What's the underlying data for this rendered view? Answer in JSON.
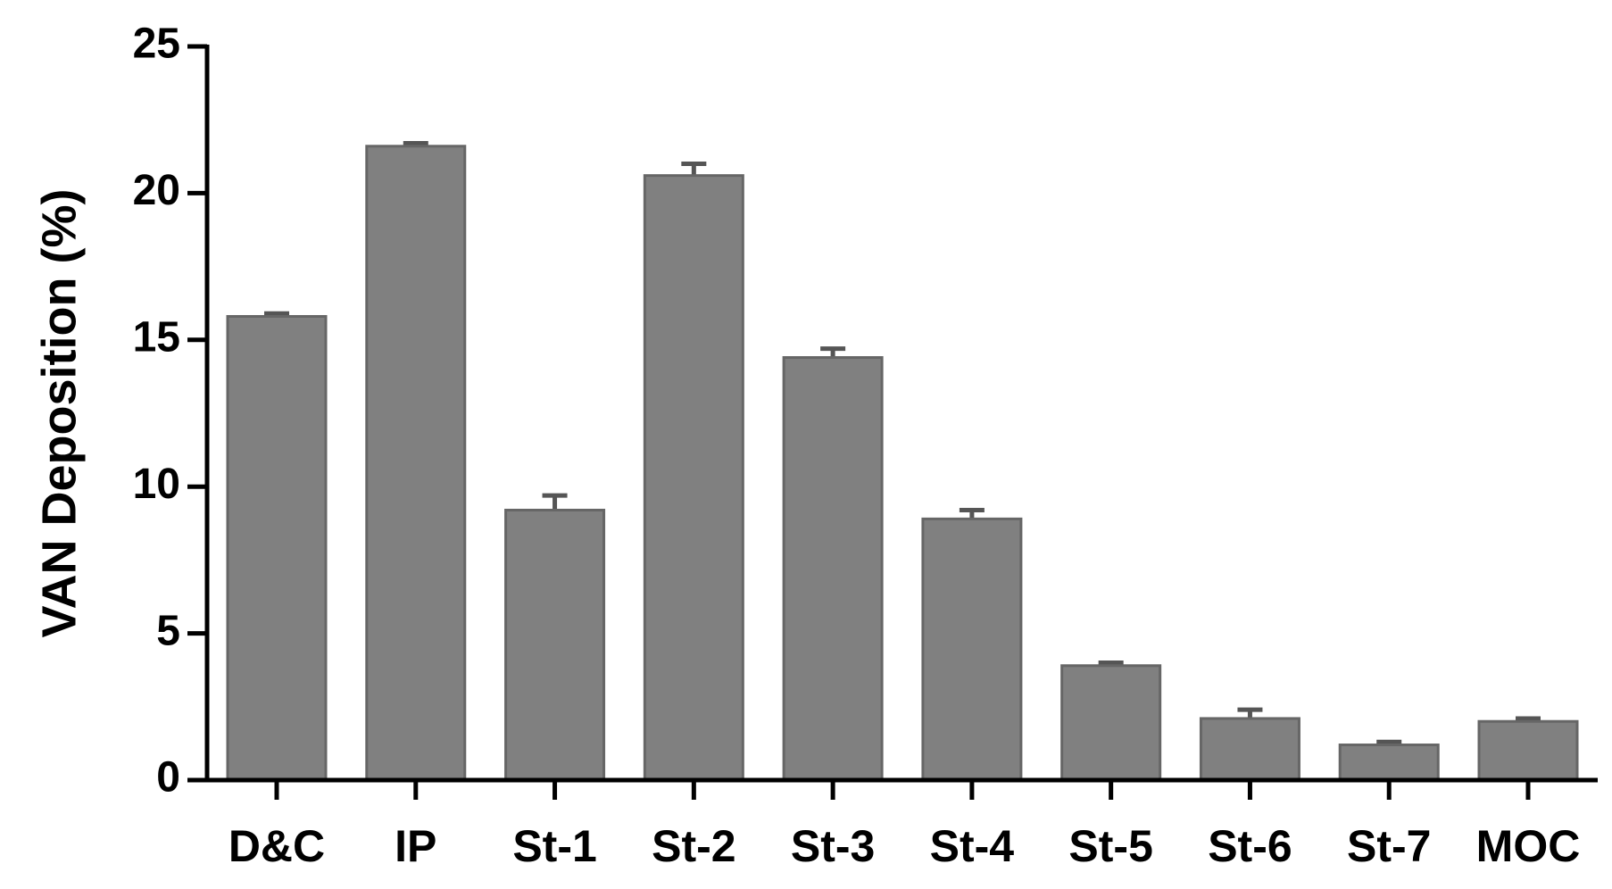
{
  "chart_data": {
    "type": "bar",
    "y_label": "VAN Deposition (%)",
    "categories": [
      "D&C",
      "IP",
      "St-1",
      "St-2",
      "St-3",
      "St-4",
      "St-5",
      "St-6",
      "St-7",
      "MOC"
    ],
    "values": [
      15.8,
      21.6,
      9.2,
      20.6,
      14.4,
      8.9,
      3.9,
      2.1,
      1.2,
      2.0
    ],
    "errors": [
      0.1,
      0.1,
      0.5,
      0.4,
      0.3,
      0.3,
      0.1,
      0.3,
      0.1,
      0.1
    ],
    "color": "#808080",
    "ylim": [
      0,
      25
    ],
    "yticks": [
      0,
      5,
      10,
      15,
      20,
      25
    ]
  }
}
